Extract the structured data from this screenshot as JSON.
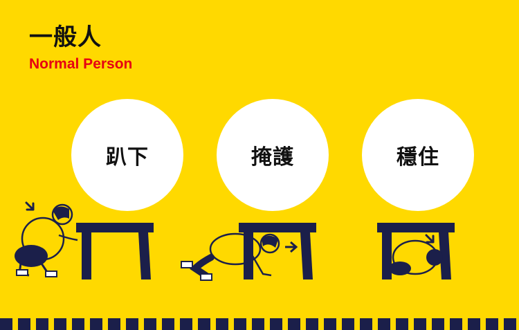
{
  "header": {
    "title_zh": "一般人",
    "title_en": "Normal Person"
  },
  "steps": [
    {
      "label": "趴下",
      "icon": "person-dropping-icon"
    },
    {
      "label": "掩護",
      "icon": "person-crawling-under-table-icon"
    },
    {
      "label": "穩住",
      "icon": "person-holding-on-under-table-icon"
    }
  ],
  "colors": {
    "background": "#FFD900",
    "circle": "#FFFFFF",
    "title": "#111111",
    "subtitle": "#E60012",
    "navy": "#1B1F4A"
  }
}
